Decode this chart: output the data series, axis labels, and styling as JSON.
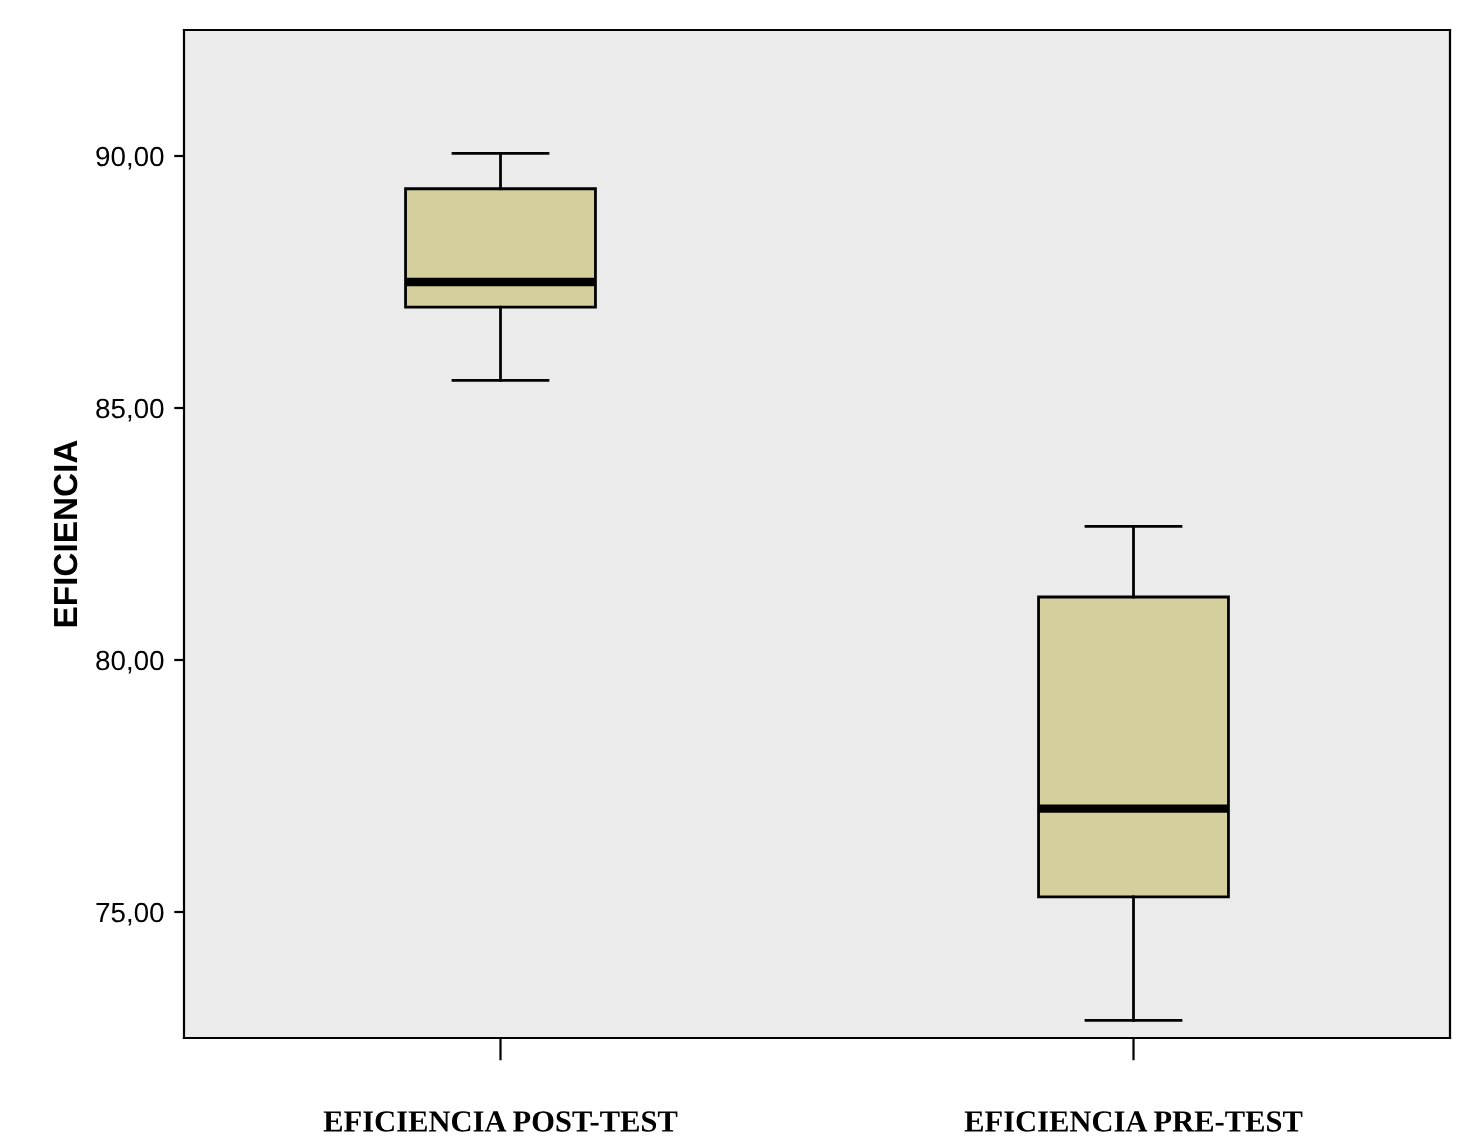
{
  "chart_data": {
    "type": "box",
    "ylabel": "EFICIENCIA",
    "categories": [
      "EFICIENCIA POST-TEST",
      "EFICIENCIA PRE-TEST"
    ],
    "boxes": [
      {
        "low": 85.55,
        "q1": 87.0,
        "median": 87.5,
        "q3": 89.35,
        "high": 90.05
      },
      {
        "low": 72.85,
        "q1": 75.3,
        "median": 77.05,
        "q3": 81.25,
        "high": 82.65
      }
    ],
    "color": "#d5cf9d",
    "ylim": [
      72.5,
      92.5
    ],
    "yticks": [
      {
        "value": 75,
        "label": "75,00"
      },
      {
        "value": 80,
        "label": "80,00"
      },
      {
        "value": 85,
        "label": "85,00"
      },
      {
        "value": 90,
        "label": "90,00"
      }
    ],
    "grid": false
  }
}
